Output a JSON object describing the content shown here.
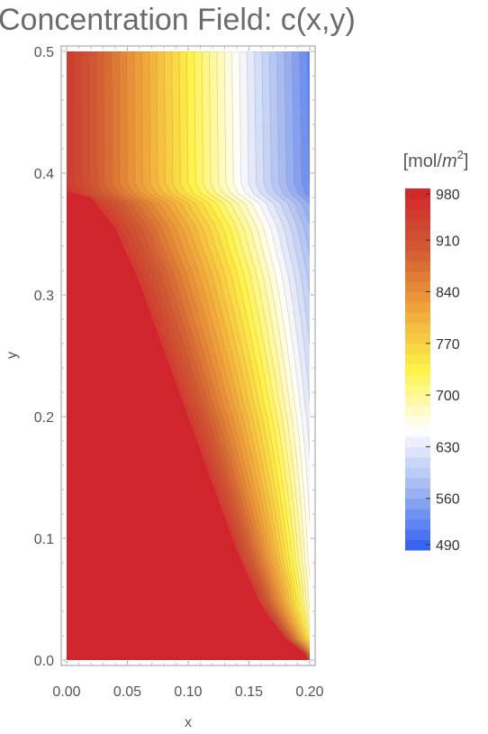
{
  "chart_data": {
    "type": "heatmap",
    "title": "Concentration Field: c(x,y)",
    "xlabel": "x",
    "ylabel": "y",
    "xlim": [
      0,
      0.2
    ],
    "ylim": [
      0,
      0.5
    ],
    "x_ticks": [
      "0.00",
      "0.05",
      "0.10",
      "0.15",
      "0.20"
    ],
    "x_tick_values": [
      0,
      0.05,
      0.1,
      0.15,
      0.2
    ],
    "y_ticks": [
      "0.0",
      "0.1",
      "0.2",
      "0.3",
      "0.4",
      "0.5"
    ],
    "y_tick_values": [
      0,
      0.1,
      0.2,
      0.3,
      0.4,
      0.5
    ],
    "colorbar": {
      "unit_prefix": "[mol/",
      "unit_var": "m",
      "unit_exp": "2",
      "unit_suffix": "]",
      "min": 490,
      "max": 980,
      "ticks": [
        "490",
        "560",
        "630",
        "700",
        "770",
        "840",
        "910",
        "980"
      ],
      "tick_values": [
        490,
        560,
        630,
        700,
        770,
        840,
        910,
        980
      ],
      "colors": [
        "#2f5cf0",
        "#9fb6f2",
        "#ffffff",
        "#fff34a",
        "#f0a53a",
        "#d05a32",
        "#d1252d"
      ]
    },
    "saturated_region": {
      "value": 980,
      "boundary_x": [
        0.0,
        0.02,
        0.04,
        0.06,
        0.08,
        0.1,
        0.12,
        0.14,
        0.16,
        0.18,
        0.197
      ],
      "boundary_y": [
        0.385,
        0.38,
        0.355,
        0.31,
        0.255,
        0.2,
        0.145,
        0.09,
        0.045,
        0.018,
        0.005
      ]
    },
    "contour_count": 35
  }
}
